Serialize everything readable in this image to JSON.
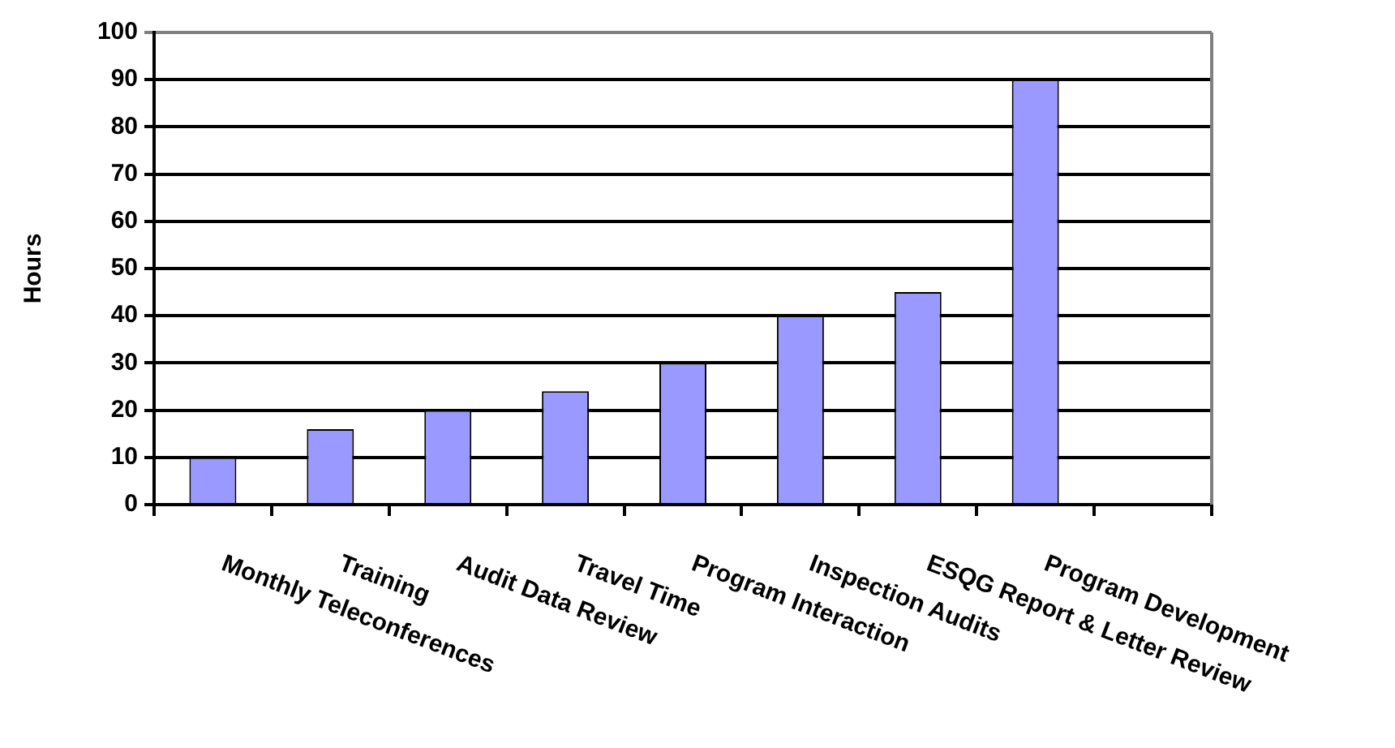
{
  "chart_data": {
    "type": "bar",
    "ylabel": "Hours",
    "categories": [
      "Monthly Teleconferences",
      "Training",
      "Audit Data Review",
      "Travel Time",
      "Program Interaction",
      "Inspection Audits",
      "ESQG Report & Letter Review",
      "Program Development",
      null
    ],
    "values": [
      10,
      16,
      20,
      24,
      30,
      40,
      45,
      90,
      null
    ],
    "color": "#9999ff",
    "ylim": [
      0,
      100
    ],
    "yticks": [
      0,
      10,
      20,
      30,
      40,
      50,
      60,
      70,
      80,
      90,
      100
    ],
    "grid": "y",
    "legend": false
  }
}
